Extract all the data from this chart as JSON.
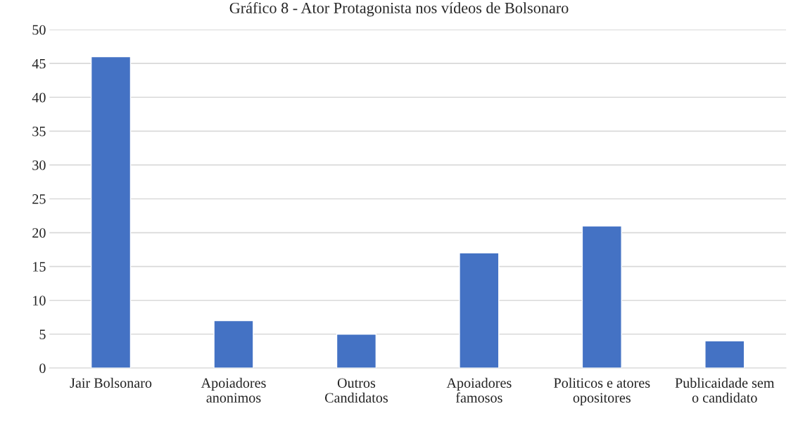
{
  "chart_data": {
    "type": "bar",
    "title": "Gráfico 8 - Ator Protagonista nos vídeos de Bolsonaro",
    "categories": [
      "Jair Bolsonaro",
      "Apoiadores\nanonimos",
      "Outros\nCandidatos",
      "Apoiadores\nfamosos",
      "Politicos e atores\nopositores",
      "Publicaidade sem\no candidato"
    ],
    "values": [
      46,
      7,
      5,
      17,
      21,
      4
    ],
    "color": "#4472c4",
    "ylim": [
      0,
      50
    ],
    "yticks": [
      0,
      5,
      10,
      15,
      20,
      25,
      30,
      35,
      40,
      45,
      50
    ],
    "grid": "y"
  }
}
